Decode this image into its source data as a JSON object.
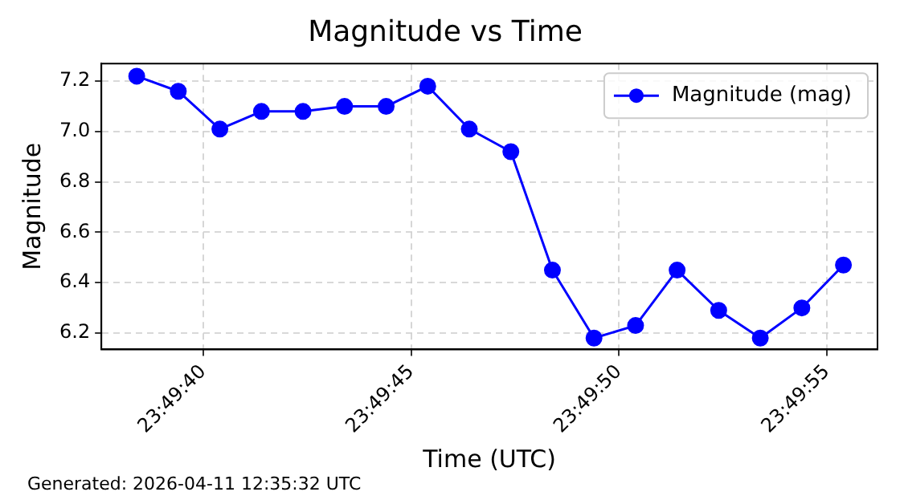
{
  "chart_data": {
    "type": "line",
    "title": "Magnitude vs Time",
    "xlabel": "Time (UTC)",
    "ylabel": "Magnitude",
    "x": [
      23.8273333,
      23.8276111,
      23.8278889,
      23.8281667,
      23.8284444,
      23.8287222,
      23.829,
      23.8292778,
      23.8295556,
      23.8298333,
      23.8301111,
      23.8303889,
      23.8306667,
      23.8309444,
      23.8312222,
      23.8315,
      23.8317778,
      23.8320556
    ],
    "series": [
      {
        "name": "Magnitude (mag)",
        "color": "#0000ff",
        "values": [
          7.22,
          7.16,
          7.01,
          7.08,
          7.08,
          7.1,
          7.1,
          7.18,
          7.01,
          6.92,
          6.45,
          6.18,
          6.23,
          6.45,
          6.29,
          6.18,
          6.3,
          6.47
        ]
      }
    ],
    "xlim": [
      23.8270972,
      23.8322833
    ],
    "xticks": [
      {
        "value": 23.8277778,
        "label": "23:49:40"
      },
      {
        "value": 23.8291667,
        "label": "23:49:45"
      },
      {
        "value": 23.8305556,
        "label": "23:49:50"
      },
      {
        "value": 23.8319444,
        "label": "23:49:55"
      }
    ],
    "ylim": [
      6.135,
      7.27
    ],
    "yticks": [
      6.2,
      6.4,
      6.6,
      6.8,
      {
        "value": 7,
        "label": "7.0"
      },
      7.2
    ],
    "grid": true,
    "legend": "top right",
    "marker": "circle",
    "line_style": "solid",
    "annotations": [
      "Generated: 2026-04-11 12:35:32 UTC"
    ]
  }
}
